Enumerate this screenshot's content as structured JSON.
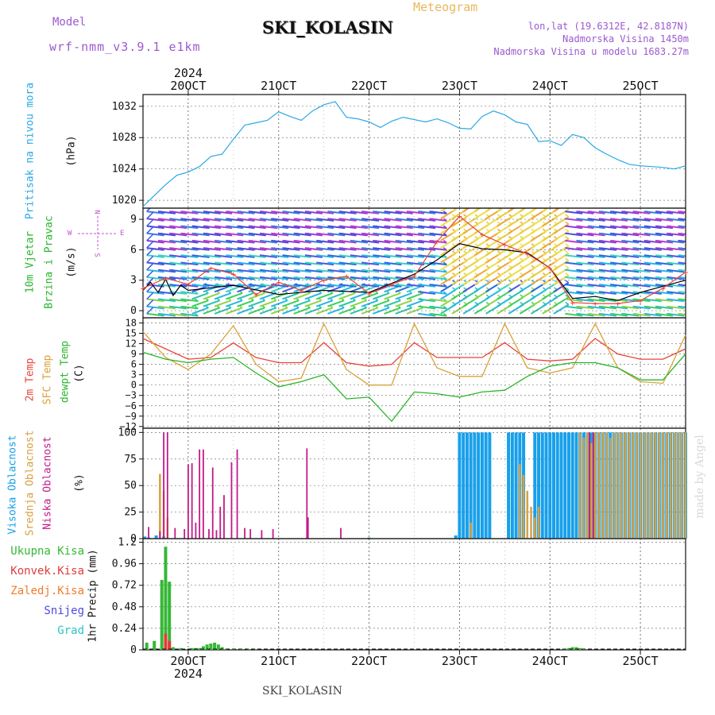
{
  "header": {
    "model_label": "Model",
    "model_name": "wrf-nmm_v3.9.1 e1km",
    "station": "SKI_KOLASIN",
    "meteogram_label": "Meteogram",
    "lonlat": "lon,lat (19.6312E, 42.8187N)",
    "elevation": "Nadmorska Visina 1450m",
    "model_elevation": "Nadmorska Visina u modelu 1683.27m"
  },
  "footer": {
    "station": "SKI_KOLASIN",
    "credit": "made by Angel"
  },
  "time_axis": {
    "year": "2024",
    "days": [
      "20OCT",
      "21OCT",
      "22OCT",
      "23OCT",
      "24OCT",
      "25OCT"
    ],
    "start_hour": -12,
    "end_hour": 132
  },
  "colors": {
    "pressure": "#2aa7e6",
    "temp2m": "#e8443a",
    "sfc_temp": "#d9a23a",
    "dewpt": "#2ab52a",
    "cloud_high": "#18a0ea",
    "cloud_mid": "#d8a040",
    "cloud_low": "#c21a8a",
    "precip_total": "#35b835",
    "precip_conv": "#e23a3a",
    "precip_ice": "#f07b2b",
    "snow": "#4d4ae0",
    "hail": "#2ec4c4",
    "wind_speed": "#000000",
    "wind_gust": "#e8443a"
  },
  "panels": {
    "pressure": {
      "ylabel": "Pritisak na nivou mora",
      "unit": "(hPa)"
    },
    "wind": {
      "ylabel1": "10m Vjetar",
      "ylabel2": "Brzina i Pravac",
      "unit": "(m/s)",
      "compass": {
        "n": "N",
        "s": "S",
        "e": "E",
        "w": "W"
      }
    },
    "temp": {
      "label_2m": "2m Temp",
      "label_sfc": "SFC Temp",
      "label_dewpt": "dewpt Temp",
      "unit": "(C)"
    },
    "cloud": {
      "label_high": "Visoka Oblacnost",
      "label_mid": "Srednja Oblacnost",
      "label_low": "Niska Oblacnost",
      "unit": "(%)"
    },
    "precip": {
      "legend": [
        "Ukupna Kisa",
        "Konvek.Kisa",
        "Zaledj.Kisa",
        "Snijeg",
        "Grad"
      ],
      "ylabel": "1hr Precip (mm)"
    }
  },
  "chart_data": [
    {
      "type": "line",
      "panel": "pressure",
      "ylim": [
        1019,
        1033.5
      ],
      "yticks": [
        "1020",
        "1024",
        "1028",
        "1032"
      ],
      "ytick_values": [
        1020,
        1024,
        1028,
        1032
      ],
      "series": [
        {
          "x": [
            -12,
            -9,
            -6,
            -3,
            0,
            3,
            6,
            9,
            12,
            15,
            18,
            21,
            24,
            27,
            30,
            33,
            36,
            39,
            42,
            45,
            48,
            51,
            54,
            57,
            60,
            63,
            66,
            69,
            72,
            75,
            78,
            81,
            84,
            87,
            90,
            93,
            96,
            99,
            102,
            105,
            108,
            111,
            114,
            117,
            120,
            123,
            126,
            129,
            132
          ],
          "y": [
            1019.2,
            1020.6,
            1022.0,
            1023.2,
            1023.6,
            1024.3,
            1025.6,
            1025.9,
            1027.8,
            1029.6,
            1029.9,
            1030.2,
            1031.3,
            1030.7,
            1030.2,
            1031.4,
            1032.2,
            1032.6,
            1030.6,
            1030.4,
            1030.0,
            1029.3,
            1030.1,
            1030.6,
            1030.3,
            1030.0,
            1030.4,
            1029.9,
            1029.2,
            1029.1,
            1030.7,
            1031.4,
            1030.9,
            1030.0,
            1029.7,
            1027.5,
            1027.6,
            1027.0,
            1028.4,
            1028.0,
            1026.7,
            1025.9,
            1025.2,
            1024.6,
            1024.4,
            1024.3,
            1024.2,
            1024.0,
            1024.4
          ]
        }
      ]
    },
    {
      "type": "line",
      "panel": "wind",
      "ylim": [
        -0.7,
        10.1
      ],
      "yticks": [
        "0",
        "3",
        "6",
        "9"
      ],
      "ytick_values": [
        0,
        3,
        6,
        9
      ],
      "series": [
        {
          "name": "wind speed",
          "x": [
            -12,
            -10,
            -8,
            -6,
            -4,
            -2,
            0,
            12,
            24,
            36,
            48,
            60,
            66,
            72,
            78,
            84,
            90,
            96,
            102,
            108,
            114,
            120,
            132
          ],
          "y": [
            2.0,
            2.8,
            1.8,
            3.1,
            1.5,
            2.5,
            2.0,
            2.5,
            1.6,
            2.0,
            1.8,
            3.6,
            5.0,
            6.6,
            6.1,
            6.0,
            5.7,
            4.2,
            1.2,
            1.4,
            1.0,
            1.8,
            3.0
          ]
        },
        {
          "name": "wind gust",
          "x": [
            -12,
            -6,
            0,
            6,
            12,
            18,
            24,
            30,
            36,
            42,
            48,
            54,
            60,
            66,
            72,
            78,
            84,
            90,
            96,
            102,
            108,
            114,
            120,
            126,
            132
          ],
          "y": [
            2.2,
            3.2,
            2.6,
            4.2,
            3.6,
            1.6,
            2.8,
            2.0,
            3.0,
            3.4,
            1.7,
            2.6,
            3.4,
            6.8,
            9.3,
            7.5,
            6.5,
            5.6,
            4.2,
            0.8,
            0.7,
            0.7,
            1.0,
            2.2,
            3.8
          ]
        }
      ]
    },
    {
      "type": "line",
      "panel": "temp",
      "ylim": [
        -12.5,
        19.5
      ],
      "yticks": [
        "18",
        "15",
        "12",
        "9",
        "6",
        "3",
        "0",
        "−3",
        "−6",
        "−9",
        "−12"
      ],
      "ytick_values": [
        18,
        15,
        12,
        9,
        6,
        3,
        0,
        -3,
        -6,
        -9,
        -12
      ],
      "series": [
        {
          "name": "2m Temp",
          "x": [
            -12,
            -6,
            0,
            6,
            12,
            18,
            24,
            30,
            36,
            42,
            48,
            54,
            60,
            66,
            72,
            78,
            84,
            90,
            96,
            102,
            108,
            114,
            120,
            126,
            132
          ],
          "y": [
            13.5,
            10.5,
            7.5,
            8.0,
            12.2,
            8.0,
            6.5,
            6.5,
            12.3,
            6.5,
            5.5,
            6.0,
            12.3,
            8.0,
            8.0,
            8.0,
            12.3,
            7.5,
            7.0,
            7.5,
            13.5,
            9.0,
            7.5,
            7.5,
            10.5
          ]
        },
        {
          "name": "SFC Temp",
          "x": [
            -12,
            -6,
            0,
            6,
            12,
            18,
            24,
            30,
            36,
            42,
            48,
            54,
            60,
            66,
            72,
            78,
            84,
            90,
            96,
            102,
            108,
            114,
            120,
            126,
            132
          ],
          "y": [
            15.5,
            8.0,
            4.5,
            9.0,
            17.2,
            6.0,
            1.0,
            2.0,
            17.8,
            4.5,
            0.0,
            0.0,
            17.8,
            5.0,
            2.5,
            2.5,
            17.8,
            5.0,
            3.5,
            5.0,
            17.8,
            5.0,
            1.0,
            0.5,
            14.5
          ]
        },
        {
          "name": "dewpt Temp",
          "x": [
            -12,
            -6,
            0,
            6,
            12,
            18,
            24,
            30,
            36,
            42,
            48,
            54,
            60,
            66,
            72,
            78,
            84,
            90,
            96,
            102,
            108,
            114,
            120,
            126,
            132
          ],
          "y": [
            9.5,
            7.5,
            6.5,
            7.5,
            8.0,
            3.5,
            -0.5,
            1.0,
            3.0,
            -4.0,
            -3.5,
            -10.5,
            -2.0,
            -2.5,
            -3.5,
            -2.0,
            -1.5,
            2.5,
            5.5,
            6.5,
            6.5,
            5.0,
            1.5,
            1.5,
            9.0
          ]
        }
      ]
    },
    {
      "type": "bar",
      "panel": "cloud",
      "ylim": [
        0,
        104
      ],
      "yticks": [
        "0",
        "25",
        "50",
        "75",
        "100"
      ],
      "ytick_values": [
        0,
        25,
        50,
        75,
        100
      ],
      "series": [
        {
          "name": "Visoka Oblacnost",
          "x": [
            -11.5,
            -10.5,
            -8.5,
            -6.5,
            48,
            71,
            72,
            73,
            74,
            75,
            76,
            77,
            78,
            79,
            80,
            81,
            82,
            83,
            84,
            85,
            86,
            87,
            88,
            89,
            90,
            91,
            92,
            93,
            94,
            95,
            96,
            97,
            98,
            99,
            100,
            101,
            102,
            103,
            104,
            105,
            106,
            107,
            108,
            109,
            110,
            111,
            112,
            113,
            114,
            115,
            116,
            117,
            118,
            119,
            120,
            121,
            122,
            123,
            124,
            125,
            126,
            127,
            128,
            129,
            130,
            131,
            132
          ],
          "values": [
            2,
            1,
            3,
            2,
            1,
            3,
            100,
            100,
            100,
            100,
            100,
            100,
            100,
            100,
            100,
            0,
            0,
            0,
            0,
            100,
            100,
            100,
            100,
            100,
            0,
            0,
            100,
            100,
            100,
            100,
            100,
            100,
            100,
            100,
            100,
            100,
            100,
            100,
            100,
            100,
            100,
            100,
            100,
            100,
            100,
            100,
            100,
            100,
            100,
            100,
            100,
            100,
            100,
            100,
            100,
            100,
            100,
            100,
            100,
            100,
            100,
            100,
            100,
            100,
            100,
            100,
            100
          ]
        },
        {
          "name": "Srednja Oblacnost",
          "x": [
            -7.5,
            -6.5,
            -5.5,
            75,
            88,
            89,
            90,
            91,
            92,
            93,
            104,
            105,
            106,
            107,
            108,
            109,
            110,
            111,
            112,
            113,
            114,
            115,
            116,
            117,
            118,
            119,
            120,
            121,
            122,
            123,
            124,
            125,
            126,
            127,
            128,
            129,
            130,
            131,
            132
          ],
          "values": [
            61,
            45,
            20,
            15,
            70,
            60,
            45,
            30,
            20,
            30,
            100,
            95,
            100,
            90,
            100,
            100,
            100,
            100,
            95,
            100,
            100,
            100,
            100,
            100,
            100,
            100,
            100,
            100,
            100,
            100,
            100,
            100,
            100,
            100,
            100,
            100,
            100,
            100,
            100
          ]
        },
        {
          "name": "Niska Oblacnost",
          "x": [
            -10.5,
            -7.5,
            -6.5,
            -5.5,
            -3.5,
            -1.0,
            0.0,
            1.0,
            2.0,
            3.0,
            4.0,
            5.5,
            6.5,
            7.5,
            8.5,
            9.5,
            11.5,
            13.0,
            15.0,
            16.5,
            19.5,
            22.5,
            31.5,
            31.8,
            40.5,
            106.5,
            107.5
          ],
          "values": [
            11,
            7,
            100,
            100,
            10,
            9,
            70,
            71,
            15,
            84,
            84,
            9,
            67,
            8,
            30,
            41,
            72,
            84,
            10,
            9,
            8,
            9,
            85,
            20,
            10,
            100,
            100
          ]
        }
      ]
    },
    {
      "type": "bar",
      "panel": "precip",
      "ylim": [
        0,
        1.24
      ],
      "yticks": [
        "0",
        "0.24",
        "0.48",
        "0.72",
        "0.96",
        "1.2"
      ],
      "ytick_values": [
        0,
        0.24,
        0.48,
        0.72,
        0.96,
        1.2
      ],
      "series": [
        {
          "name": "Ukupna Kisa",
          "x": [
            -11,
            -9,
            -7,
            -6,
            -5,
            -4,
            -2,
            1,
            2,
            3,
            4,
            5,
            6,
            7,
            8,
            9,
            10,
            12,
            14,
            16,
            18,
            100,
            101,
            102,
            103,
            104,
            105
          ],
          "values": [
            0.08,
            0.1,
            0.78,
            1.15,
            0.76,
            0.03,
            0.02,
            0.02,
            0.02,
            0.02,
            0.04,
            0.06,
            0.07,
            0.08,
            0.06,
            0.03,
            0.01,
            0.01,
            0.01,
            0.01,
            0.01,
            0.01,
            0.02,
            0.03,
            0.03,
            0.02,
            0.01
          ]
        },
        {
          "name": "Konvek.Kisa",
          "x": [
            -6,
            -5
          ],
          "values": [
            0.18,
            0.1
          ]
        },
        {
          "name": "Zaledj.Kisa",
          "x": [],
          "values": []
        },
        {
          "name": "Snijeg",
          "x": [],
          "values": []
        },
        {
          "name": "Grad",
          "x": [],
          "values": []
        }
      ]
    }
  ]
}
